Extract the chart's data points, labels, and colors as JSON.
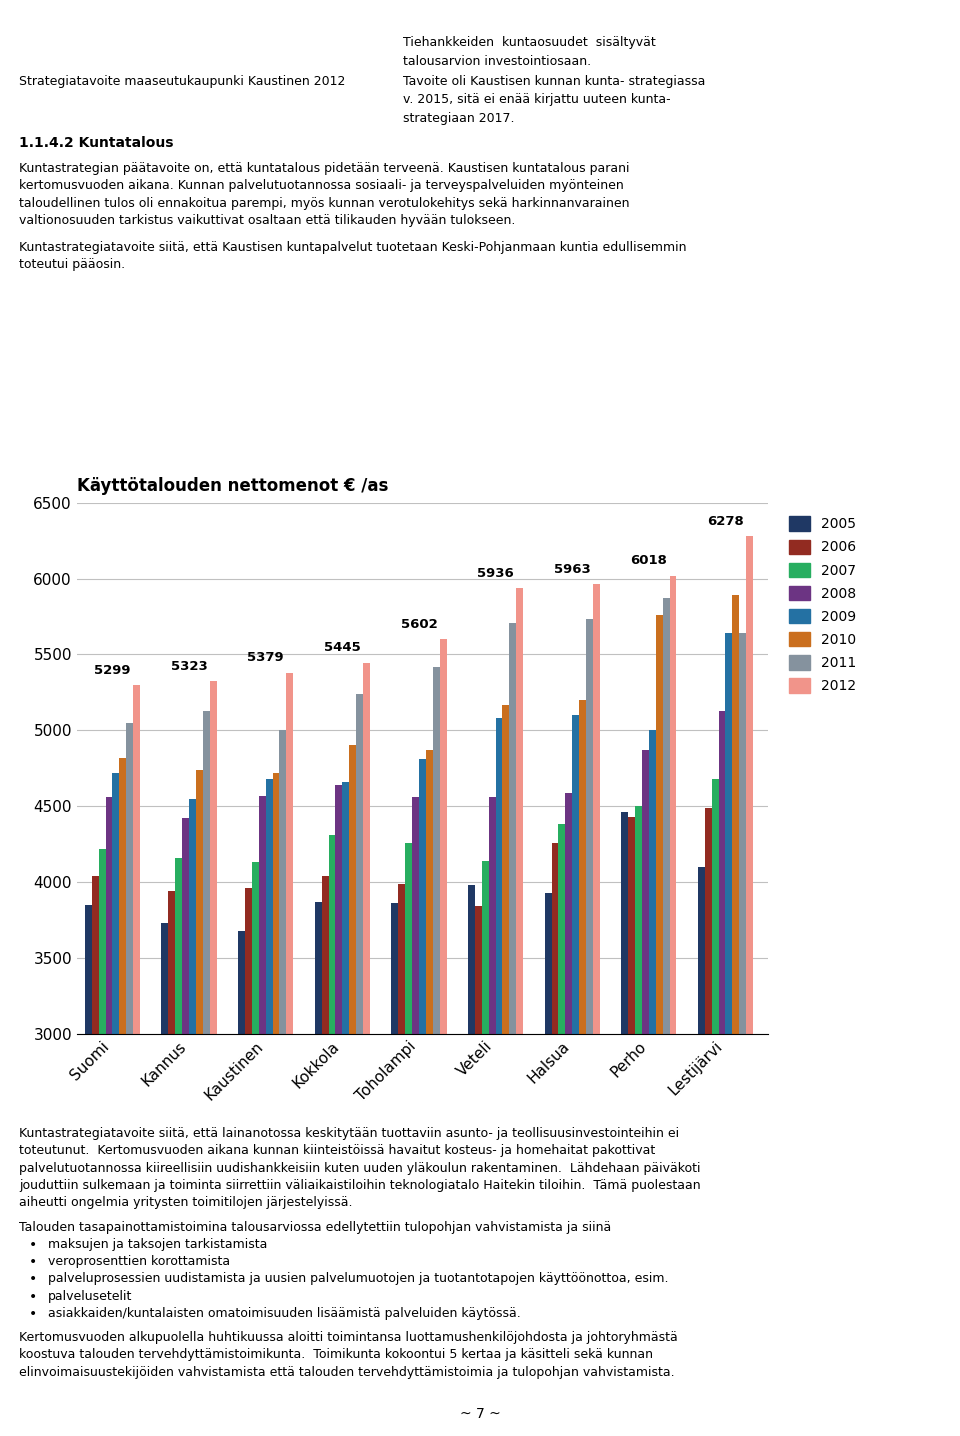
{
  "title": "Käyttötalouden nettomenot € /as",
  "categories": [
    "Suomi",
    "Kannus",
    "Kaustinen",
    "Kokkola",
    "Toholampi",
    "Veteli",
    "Halsua",
    "Perho",
    "Lestijärvi"
  ],
  "top_labels": [
    5299,
    5323,
    5379,
    5445,
    5602,
    5936,
    5963,
    6018,
    6278
  ],
  "years": [
    "2005",
    "2006",
    "2007",
    "2008",
    "2009",
    "2010",
    "2011",
    "2012"
  ],
  "year_colors": [
    "#1F3864",
    "#922B21",
    "#27AE60",
    "#6C3483",
    "#2471A3",
    "#CA6F1E",
    "#85929E",
    "#F1948A"
  ],
  "data": {
    "2005": [
      3850,
      3730,
      3680,
      3870,
      3860,
      3980,
      3930,
      4460,
      4100
    ],
    "2006": [
      4040,
      3940,
      3960,
      4040,
      3990,
      3840,
      4260,
      4430,
      4490
    ],
    "2007": [
      4220,
      4160,
      4130,
      4310,
      4260,
      4140,
      4380,
      4500,
      4680
    ],
    "2008": [
      4560,
      4420,
      4570,
      4640,
      4560,
      4560,
      4590,
      4870,
      5130
    ],
    "2009": [
      4720,
      4550,
      4680,
      4660,
      4810,
      5080,
      5100,
      5000,
      5640
    ],
    "2010": [
      4820,
      4740,
      4720,
      4900,
      4870,
      5170,
      5200,
      5760,
      5890
    ],
    "2011": [
      5050,
      5130,
      5000,
      5240,
      5420,
      5710,
      5730,
      5870,
      5640
    ],
    "2012": [
      5299,
      5323,
      5379,
      5445,
      5602,
      5936,
      5963,
      6018,
      6278
    ]
  },
  "ylim": [
    3000,
    6500
  ],
  "yticks": [
    3000,
    3500,
    4000,
    4500,
    5000,
    5500,
    6000,
    6500
  ],
  "background_color": "#FFFFFF",
  "plot_bg_color": "#FFFFFF",
  "grid_color": "#C0C0C0"
}
